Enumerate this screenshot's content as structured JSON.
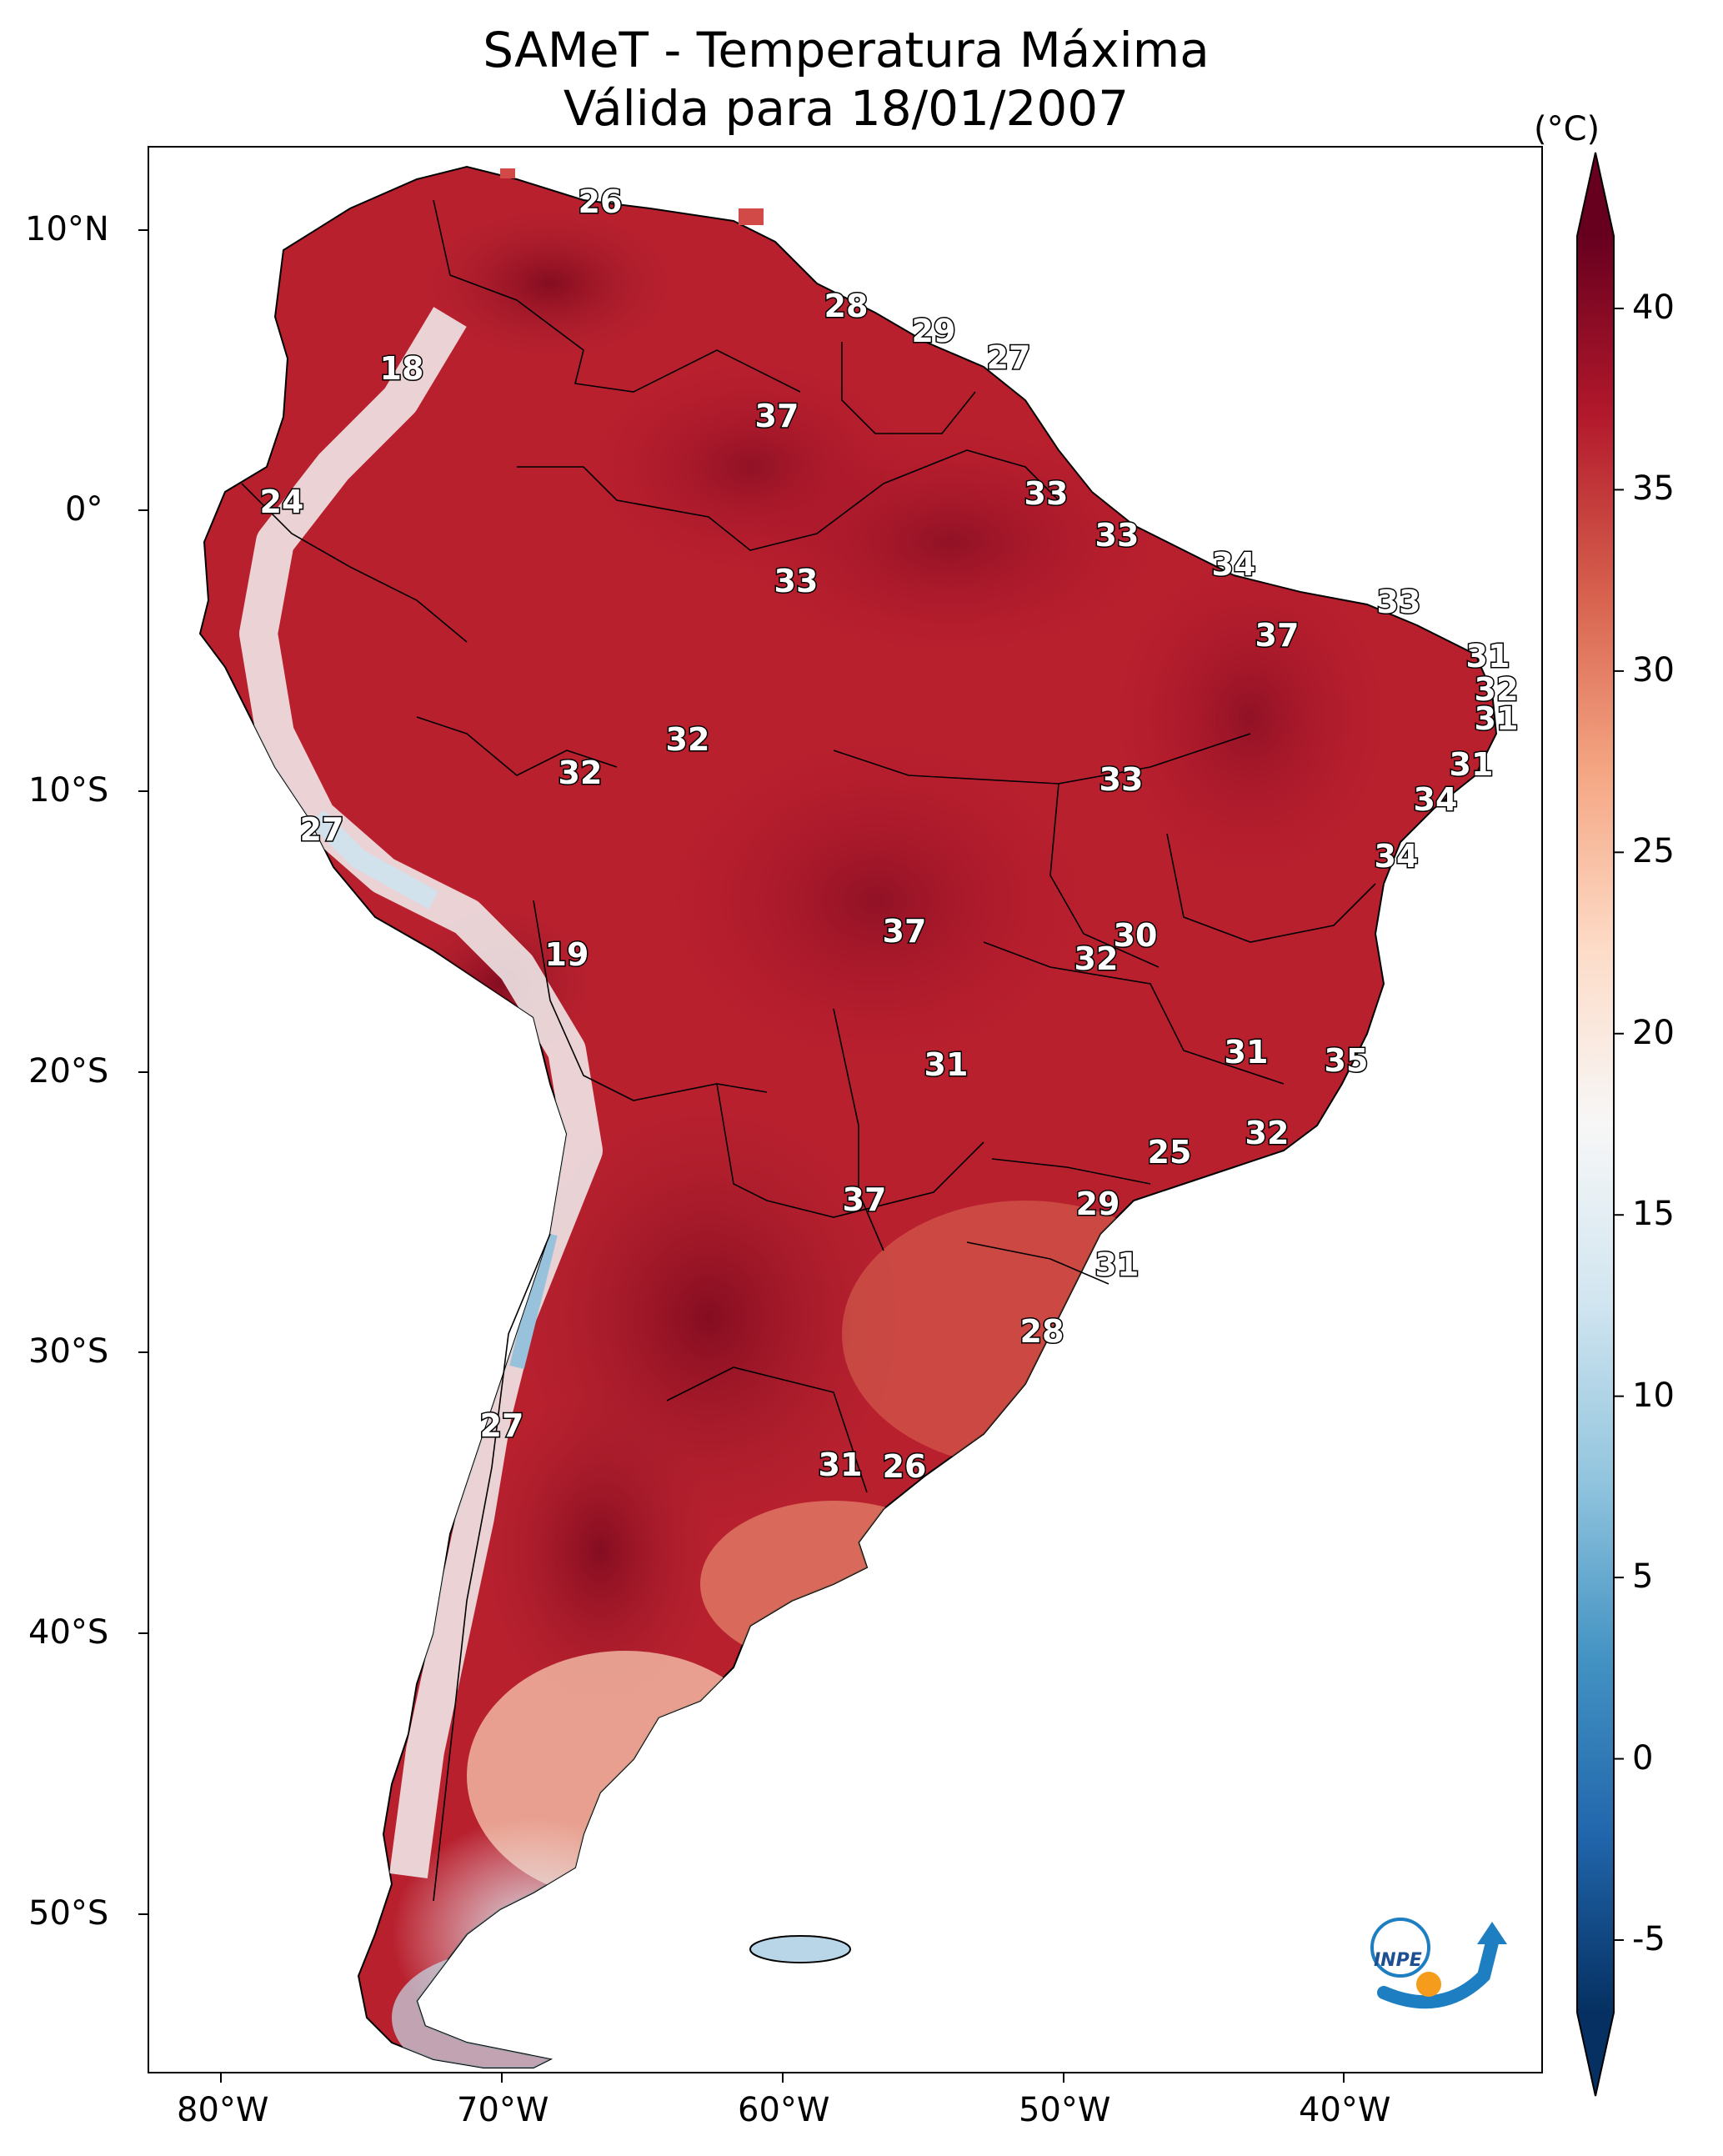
{
  "title": {
    "line1": "SAMeT - Temperatura Máxima",
    "line2": "Válida para 18/01/2007"
  },
  "colorbar": {
    "unit_label": "(°C)",
    "min": -7,
    "max": 42,
    "ticks": [
      "40",
      "35",
      "30",
      "25",
      "20",
      "15",
      "10",
      "5",
      "0",
      "-5"
    ],
    "colors": [
      "#053061",
      "#2166ac",
      "#4393c3",
      "#92c5de",
      "#d1e5f0",
      "#f7f7f7",
      "#fddbc7",
      "#f4a582",
      "#d6604d",
      "#b2182b",
      "#67001f"
    ]
  },
  "axes": {
    "lat_labels": [
      "10°N",
      "0°",
      "10°S",
      "20°S",
      "30°S",
      "40°S",
      "50°S"
    ],
    "lon_labels": [
      "80°W",
      "70°W",
      "60°W",
      "50°W",
      "40°W"
    ]
  },
  "contour_labels": [
    "26",
    "28",
    "29",
    "27",
    "18",
    "37",
    "24",
    "33",
    "33",
    "34",
    "33",
    "33",
    "37",
    "31",
    "32",
    "31",
    "32",
    "32",
    "31",
    "33",
    "34",
    "27",
    "34",
    "19",
    "37",
    "30",
    "32",
    "31",
    "35",
    "31",
    "32",
    "25",
    "37",
    "29",
    "31",
    "28",
    "27",
    "31",
    "26"
  ],
  "logo": {
    "text": "INPE"
  }
}
